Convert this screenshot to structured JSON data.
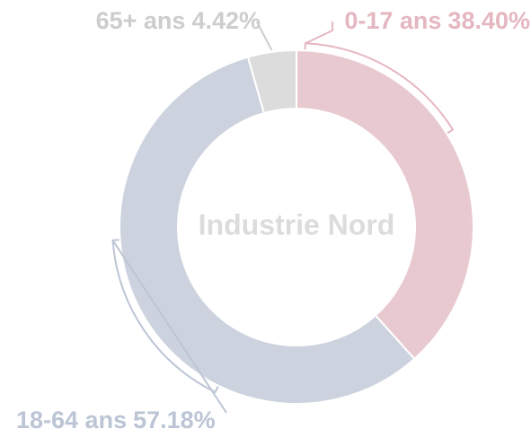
{
  "chart_data": {
    "type": "donut",
    "title": "Industrie Nord",
    "categories": [
      "0-17 ans",
      "18-64 ans",
      "65+ ans"
    ],
    "values": [
      38.4,
      57.18,
      4.42
    ],
    "value_labels": [
      "38.40%",
      "57.18%",
      "4.42%"
    ],
    "colors": [
      "#e8c9cf",
      "#cdd3de",
      "#dcdcdc"
    ]
  }
}
